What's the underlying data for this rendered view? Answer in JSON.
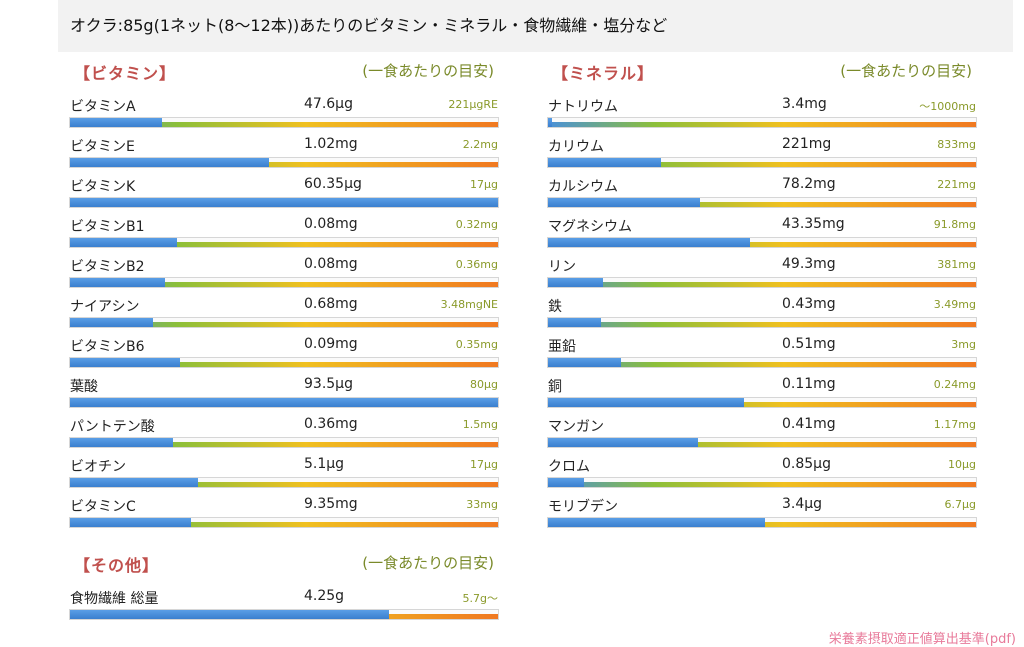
{
  "title": "オクラ:85g(1ネット(8〜12本))あたりのビタミン・ミネラル・食物繊維・塩分など",
  "vitamins": {
    "heading": "【ビタミン】",
    "note": "(一食あたりの目安)",
    "items": [
      {
        "name": "ビタミンA",
        "amount": "47.6μg",
        "target": "221μgRE",
        "level": 0.215
      },
      {
        "name": "ビタミンE",
        "amount": "1.02mg",
        "target": "2.2mg",
        "level": 0.465
      },
      {
        "name": "ビタミンK",
        "amount": "60.35μg",
        "target": "17μg",
        "level": 1.0
      },
      {
        "name": "ビタミンB1",
        "amount": "0.08mg",
        "target": "0.32mg",
        "level": 0.25
      },
      {
        "name": "ビタミンB2",
        "amount": "0.08mg",
        "target": "0.36mg",
        "level": 0.222
      },
      {
        "name": "ナイアシン",
        "amount": "0.68mg",
        "target": "3.48mgNE",
        "level": 0.195
      },
      {
        "name": "ビタミンB6",
        "amount": "0.09mg",
        "target": "0.35mg",
        "level": 0.257
      },
      {
        "name": "葉酸",
        "amount": "93.5μg",
        "target": "80μg",
        "level": 1.0
      },
      {
        "name": "パントテン酸",
        "amount": "0.36mg",
        "target": "1.5mg",
        "level": 0.24
      },
      {
        "name": "ビオチン",
        "amount": "5.1μg",
        "target": "17μg",
        "level": 0.3
      },
      {
        "name": "ビタミンC",
        "amount": "9.35mg",
        "target": "33mg",
        "level": 0.283
      }
    ]
  },
  "minerals": {
    "heading": "【ミネラル】",
    "note": "(一食あたりの目安)",
    "items": [
      {
        "name": "ナトリウム",
        "amount": "3.4mg",
        "target": "〜1000mg",
        "level": 0.01
      },
      {
        "name": "カリウム",
        "amount": "221mg",
        "target": "833mg",
        "level": 0.265
      },
      {
        "name": "カルシウム",
        "amount": "78.2mg",
        "target": "221mg",
        "level": 0.354
      },
      {
        "name": "マグネシウム",
        "amount": "43.35mg",
        "target": "91.8mg",
        "level": 0.472
      },
      {
        "name": "リン",
        "amount": "49.3mg",
        "target": "381mg",
        "level": 0.129
      },
      {
        "name": "鉄",
        "amount": "0.43mg",
        "target": "3.49mg",
        "level": 0.123
      },
      {
        "name": "亜鉛",
        "amount": "0.51mg",
        "target": "3mg",
        "level": 0.17
      },
      {
        "name": "銅",
        "amount": "0.11mg",
        "target": "0.24mg",
        "level": 0.458
      },
      {
        "name": "マンガン",
        "amount": "0.41mg",
        "target": "1.17mg",
        "level": 0.35
      },
      {
        "name": "クロム",
        "amount": "0.85μg",
        "target": "10μg",
        "level": 0.085
      },
      {
        "name": "モリブデン",
        "amount": "3.4μg",
        "target": "6.7μg",
        "level": 0.507
      }
    ]
  },
  "other": {
    "heading": "【その他】",
    "note": "(一食あたりの目安)",
    "items": [
      {
        "name": "食物繊維 総量",
        "amount": "4.25g",
        "target": "5.7g〜",
        "level": 0.746
      }
    ]
  },
  "source_link": "栄養素摂取適正値算出基準(pdf)",
  "colors": {
    "bar_fill": "#3a7fce",
    "heading": "#c0504d",
    "note": "#7a8a2a",
    "target": "#8a9a2a",
    "gradient": [
      "#4a90d9",
      "#8cbf3a",
      "#f0c020",
      "#f07820"
    ]
  }
}
